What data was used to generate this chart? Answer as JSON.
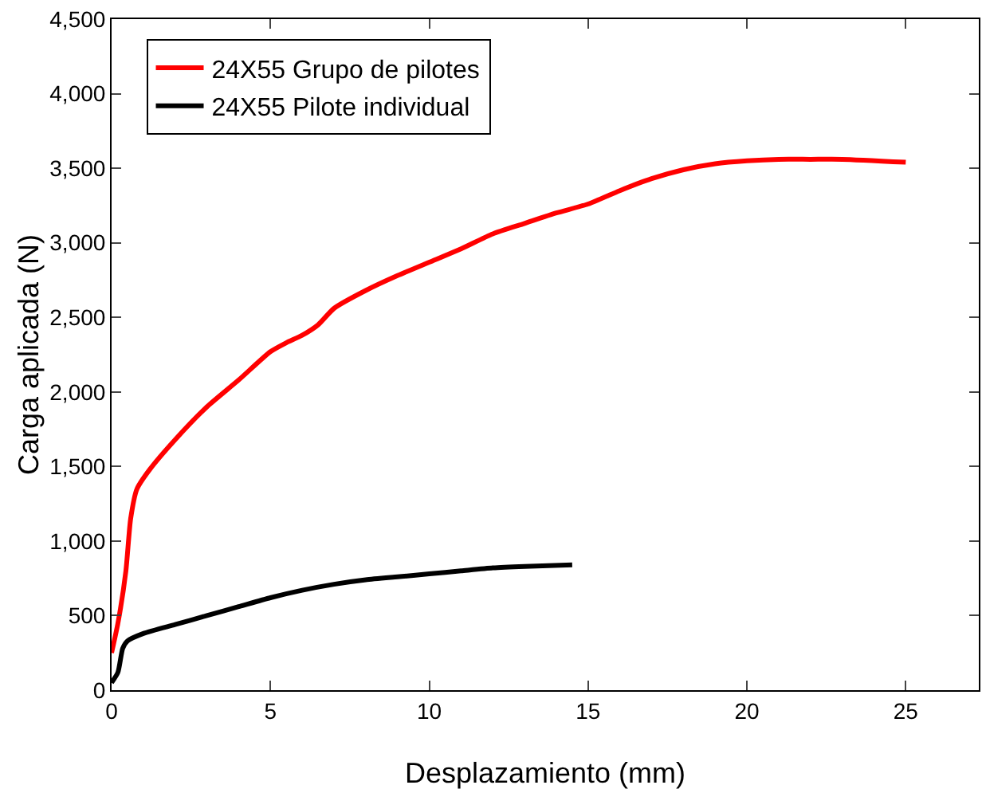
{
  "chart_data": {
    "type": "line",
    "xlabel": "Desplazamiento (mm)",
    "ylabel": "Carga aplicada (N)",
    "xlim": [
      0,
      27.3
    ],
    "xticks": [
      0,
      5,
      10,
      15,
      20,
      25
    ],
    "ylim": [
      0,
      4500
    ],
    "yticks": [
      0,
      500,
      {
        "value": 1000,
        "label": "1,000"
      },
      {
        "value": 1500,
        "label": "1,500"
      },
      {
        "value": 2000,
        "label": "2,000"
      },
      {
        "value": 2500,
        "label": "2,500"
      },
      {
        "value": 3000,
        "label": "3,000"
      },
      {
        "value": 3500,
        "label": "3,500"
      },
      {
        "value": 4000,
        "label": "4,000"
      },
      {
        "value": 4500,
        "label": "4,500"
      }
    ],
    "grid": false,
    "legend": "top left",
    "marker": "none",
    "line_style": "solid",
    "series": [
      {
        "name": "24X55 Grupo de pilotes",
        "color": "#ff0000",
        "x": [
          0,
          0.2,
          0.45,
          0.6,
          0.8,
          1.2,
          2,
          3,
          4,
          5,
          5.5,
          6,
          6.5,
          7,
          8,
          9,
          10,
          11,
          12,
          13,
          14,
          15,
          16,
          17,
          18,
          19,
          20,
          21,
          22,
          23,
          25
        ],
        "values": [
          250,
          450,
          800,
          1150,
          1350,
          1480,
          1680,
          1900,
          2080,
          2270,
          2330,
          2380,
          2450,
          2560,
          2680,
          2780,
          2870,
          2960,
          3060,
          3130,
          3200,
          3260,
          3350,
          3430,
          3490,
          3530,
          3550,
          3560,
          3560,
          3560,
          3540
        ]
      },
      {
        "name": "24X55 Pilote individual",
        "color": "#000000",
        "x": [
          0,
          0.2,
          0.35,
          0.5,
          1,
          2,
          3,
          4,
          5,
          6,
          7,
          8,
          9,
          10,
          11,
          12,
          13,
          14.5
        ],
        "values": [
          50,
          120,
          280,
          330,
          380,
          440,
          500,
          560,
          620,
          670,
          710,
          740,
          760,
          780,
          800,
          820,
          830,
          840
        ]
      }
    ]
  }
}
